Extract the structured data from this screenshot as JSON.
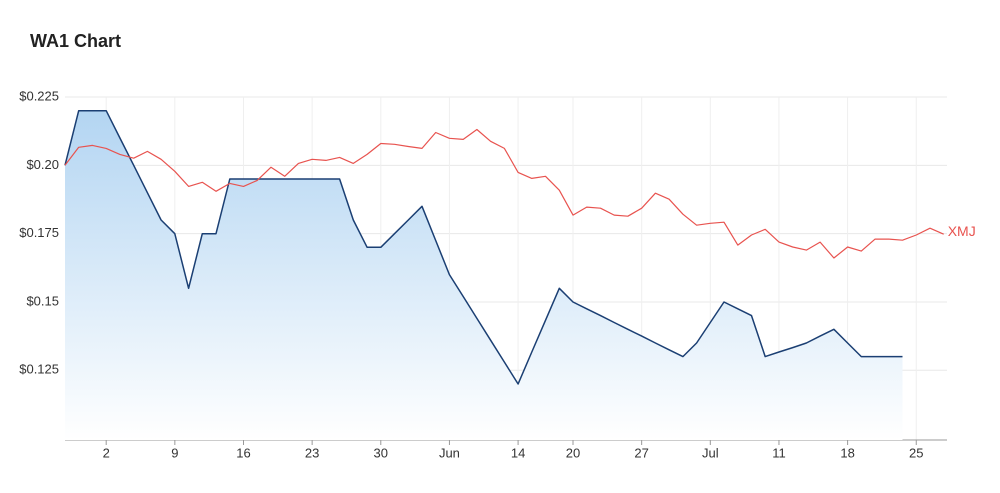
{
  "chart_data": {
    "type": "line",
    "title": "WA1 Chart",
    "categories": [
      null,
      null,
      null,
      "2",
      null,
      null,
      null,
      null,
      "9",
      null,
      null,
      null,
      null,
      "16",
      null,
      null,
      null,
      null,
      "23",
      null,
      null,
      null,
      null,
      "30",
      null,
      null,
      null,
      null,
      "Jun",
      null,
      null,
      null,
      null,
      "14",
      null,
      null,
      null,
      "20",
      null,
      null,
      null,
      null,
      "27",
      null,
      null,
      null,
      null,
      "Jul",
      null,
      null,
      null,
      null,
      "11",
      null,
      null,
      null,
      null,
      "18",
      null,
      null,
      null,
      null,
      "25",
      null,
      null
    ],
    "series": [
      {
        "color": "#1b3f73",
        "fill": "area",
        "values": [
          0.2,
          0.22,
          0.22,
          0.22,
          0.21,
          0.2,
          0.19,
          0.18,
          0.175,
          0.155,
          0.175,
          0.175,
          0.195,
          0.195,
          0.195,
          0.195,
          0.195,
          0.195,
          0.195,
          0.195,
          0.195,
          0.18,
          0.17,
          0.17,
          0.175,
          0.18,
          0.185,
          0.1725,
          0.16,
          0.152,
          0.144,
          0.136,
          0.128,
          0.12,
          0.1317,
          0.1433,
          0.155,
          0.15,
          0.1475,
          0.145,
          0.1425,
          0.14,
          0.1375,
          0.135,
          0.1325,
          0.13,
          0.135,
          0.1425,
          0.15,
          0.1475,
          0.145,
          0.13,
          0.1317,
          0.1333,
          0.135,
          0.1375,
          0.14,
          0.135,
          0.13,
          0.13,
          0.13,
          0.13,
          null,
          null,
          null
        ]
      },
      {
        "name": "XMJ",
        "color": "#e8534f",
        "values": [
          0.2,
          0.2066,
          0.2073,
          0.2062,
          0.204,
          0.2026,
          0.2051,
          0.2022,
          0.1978,
          0.1923,
          0.1938,
          0.1905,
          0.1934,
          0.1923,
          0.1945,
          0.1993,
          0.196,
          0.2007,
          0.2022,
          0.2018,
          0.2029,
          0.2007,
          0.204,
          0.208,
          0.2077,
          0.2069,
          0.2062,
          0.212,
          0.2099,
          0.2095,
          0.2131,
          0.2088,
          0.2062,
          0.1974,
          0.1952,
          0.196,
          0.1909,
          0.1818,
          0.1847,
          0.1843,
          0.1818,
          0.1814,
          0.1843,
          0.1898,
          0.1876,
          0.1821,
          0.1781,
          0.1788,
          0.1792,
          0.1708,
          0.1745,
          0.1766,
          0.1719,
          0.1701,
          0.169,
          0.1719,
          0.1661,
          0.1701,
          0.1686,
          0.173,
          0.173,
          0.1726,
          0.1745,
          0.177,
          0.1748
        ]
      }
    ],
    "ylim": [
      0.0995,
      0.225
    ],
    "yticks": [
      {
        "value": 0.125,
        "label": "$0.125"
      },
      {
        "value": 0.15,
        "label": "$0.15"
      },
      {
        "value": 0.175,
        "label": "$0.175"
      },
      {
        "value": 0.2,
        "label": "$0.20"
      },
      {
        "value": 0.225,
        "label": "$0.225"
      }
    ],
    "grid": true
  }
}
